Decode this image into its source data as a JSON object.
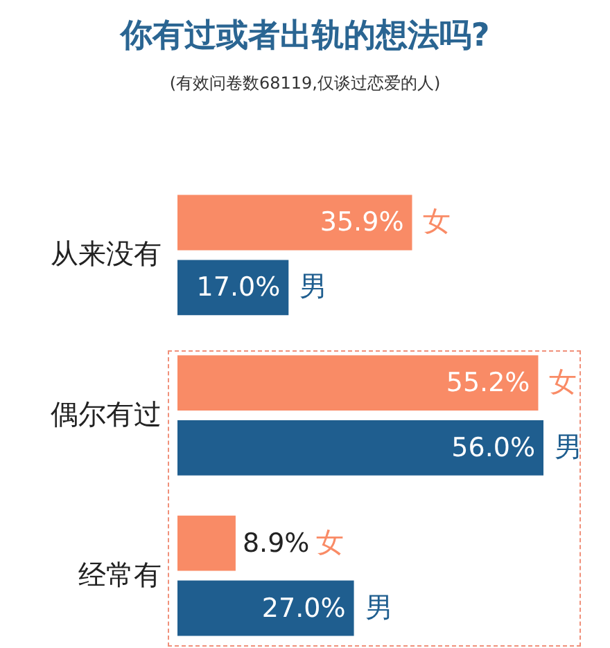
{
  "chart_data": {
    "type": "bar",
    "orientation": "horizontal",
    "title": "你有过或者出轨的想法吗?",
    "subtitle": "(有效问卷数68119,仅谈过恋爱的人)",
    "categories": [
      "从来没有",
      "偶尔有过",
      "经常有"
    ],
    "series": [
      {
        "name": "女",
        "color": "#f98b66",
        "values": [
          35.9,
          55.2,
          8.9
        ],
        "value_labels": [
          "35.9%",
          "55.2%",
          "8.9%"
        ]
      },
      {
        "name": "男",
        "color": "#1f5e8f",
        "values": [
          17.0,
          56.0,
          27.0
        ],
        "value_labels": [
          "17.0%",
          "56.0%",
          "27.0%"
        ]
      }
    ]
  }
}
